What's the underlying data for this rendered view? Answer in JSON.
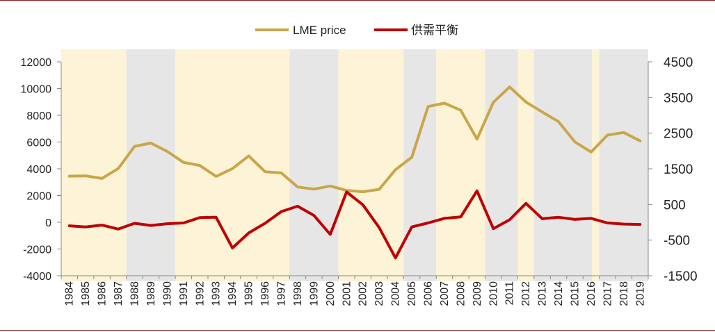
{
  "chart_data": {
    "type": "line",
    "title": "",
    "x": [
      "1984",
      "1985",
      "1986",
      "1987",
      "1988",
      "1989",
      "1990",
      "1991",
      "1992",
      "1993",
      "1994",
      "1995",
      "1996",
      "1997",
      "1998",
      "1999",
      "2000",
      "2001",
      "2002",
      "2003",
      "2004",
      "2005",
      "2006",
      "2007",
      "2008",
      "2009",
      "2010",
      "2011",
      "2012",
      "2013",
      "2014",
      "2015",
      "2016",
      "2017",
      "2018",
      "2019"
    ],
    "series": [
      {
        "name": "LME price",
        "axis": "left",
        "color": "#c9a649",
        "values": [
          3450,
          3470,
          3280,
          4020,
          5680,
          5920,
          5300,
          4480,
          4250,
          3430,
          4010,
          4960,
          3780,
          3690,
          2640,
          2480,
          2710,
          2380,
          2280,
          2460,
          3930,
          4860,
          8660,
          8910,
          8380,
          6220,
          8970,
          10120,
          8990,
          8250,
          7520,
          6010,
          5250,
          6520,
          6710,
          6090
        ]
      },
      {
        "name": "供需平衡",
        "axis": "right",
        "color": "#c00000",
        "values": [
          -100,
          -130,
          -80,
          -190,
          -30,
          -90,
          -40,
          -20,
          130,
          140,
          -720,
          -300,
          -30,
          300,
          450,
          190,
          -340,
          850,
          490,
          -150,
          -1000,
          -130,
          -20,
          110,
          150,
          880,
          -180,
          70,
          530,
          100,
          140,
          80,
          110,
          -20,
          -50,
          -60
        ]
      }
    ],
    "y_left": {
      "range": [
        -4000,
        12000
      ],
      "ticks": [
        "12000",
        "10000",
        "8000",
        "6000",
        "4000",
        "2000",
        "0",
        "-2000",
        "-4000"
      ]
    },
    "y_right": {
      "range": [
        -1500,
        4500
      ],
      "ticks": [
        "4500",
        "3500",
        "2500",
        "1500",
        "500",
        "-500",
        "-1500"
      ]
    },
    "shaded_periods": [
      {
        "start": "1984",
        "end": "1987",
        "kind": "cream"
      },
      {
        "start": "1988",
        "end": "1990",
        "kind": "gray"
      },
      {
        "start": "1991",
        "end": "1997",
        "kind": "cream"
      },
      {
        "start": "1998",
        "end": "2000",
        "kind": "gray"
      },
      {
        "start": "2001",
        "end": "2004",
        "kind": "cream"
      },
      {
        "start": "2005",
        "end": "2006",
        "kind": "gray"
      },
      {
        "start": "2007",
        "end": "2009",
        "kind": "cream"
      },
      {
        "start": "2010",
        "end": "2011",
        "kind": "gray"
      },
      {
        "start": "2012",
        "end": "2012",
        "kind": "cream"
      },
      {
        "start": "2013",
        "end": "2016",
        "kind": "gray"
      },
      {
        "start": "2016",
        "end": "2016",
        "kind": "cream"
      },
      {
        "start": "2017",
        "end": "2019",
        "kind": "gray"
      }
    ],
    "colors": {
      "cream": "#fdf3d6",
      "gray": "#e6e6e6",
      "axis": "#888888",
      "rule": "#8b1a1a"
    },
    "legend": {
      "position": "top-center",
      "entries": [
        "LME price",
        "供需平衡"
      ]
    }
  }
}
